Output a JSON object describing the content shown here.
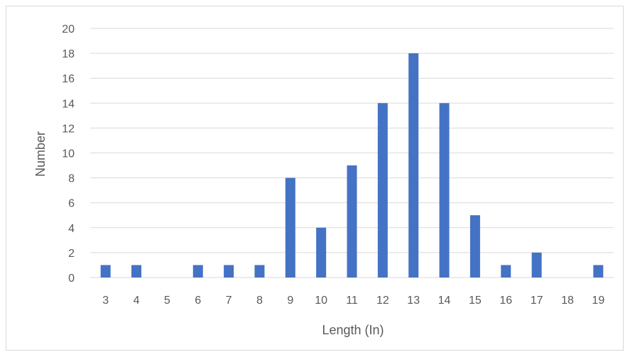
{
  "chart_data": {
    "type": "bar",
    "title": "",
    "xlabel": "Length (In)",
    "ylabel": "Number",
    "categories": [
      "3",
      "4",
      "5",
      "6",
      "7",
      "8",
      "9",
      "10",
      "11",
      "12",
      "13",
      "14",
      "15",
      "16",
      "17",
      "18",
      "19"
    ],
    "values": [
      1,
      1,
      0,
      1,
      1,
      1,
      8,
      4,
      9,
      14,
      18,
      14,
      5,
      1,
      2,
      0,
      1
    ],
    "ylim": [
      0,
      20
    ],
    "yticks": [
      "0",
      "2",
      "4",
      "6",
      "8",
      "10",
      "12",
      "14",
      "16",
      "18",
      "20"
    ],
    "grid": true,
    "legend": "none",
    "bar_color": "#4472C4",
    "grid_color": "#d9d9d9"
  }
}
